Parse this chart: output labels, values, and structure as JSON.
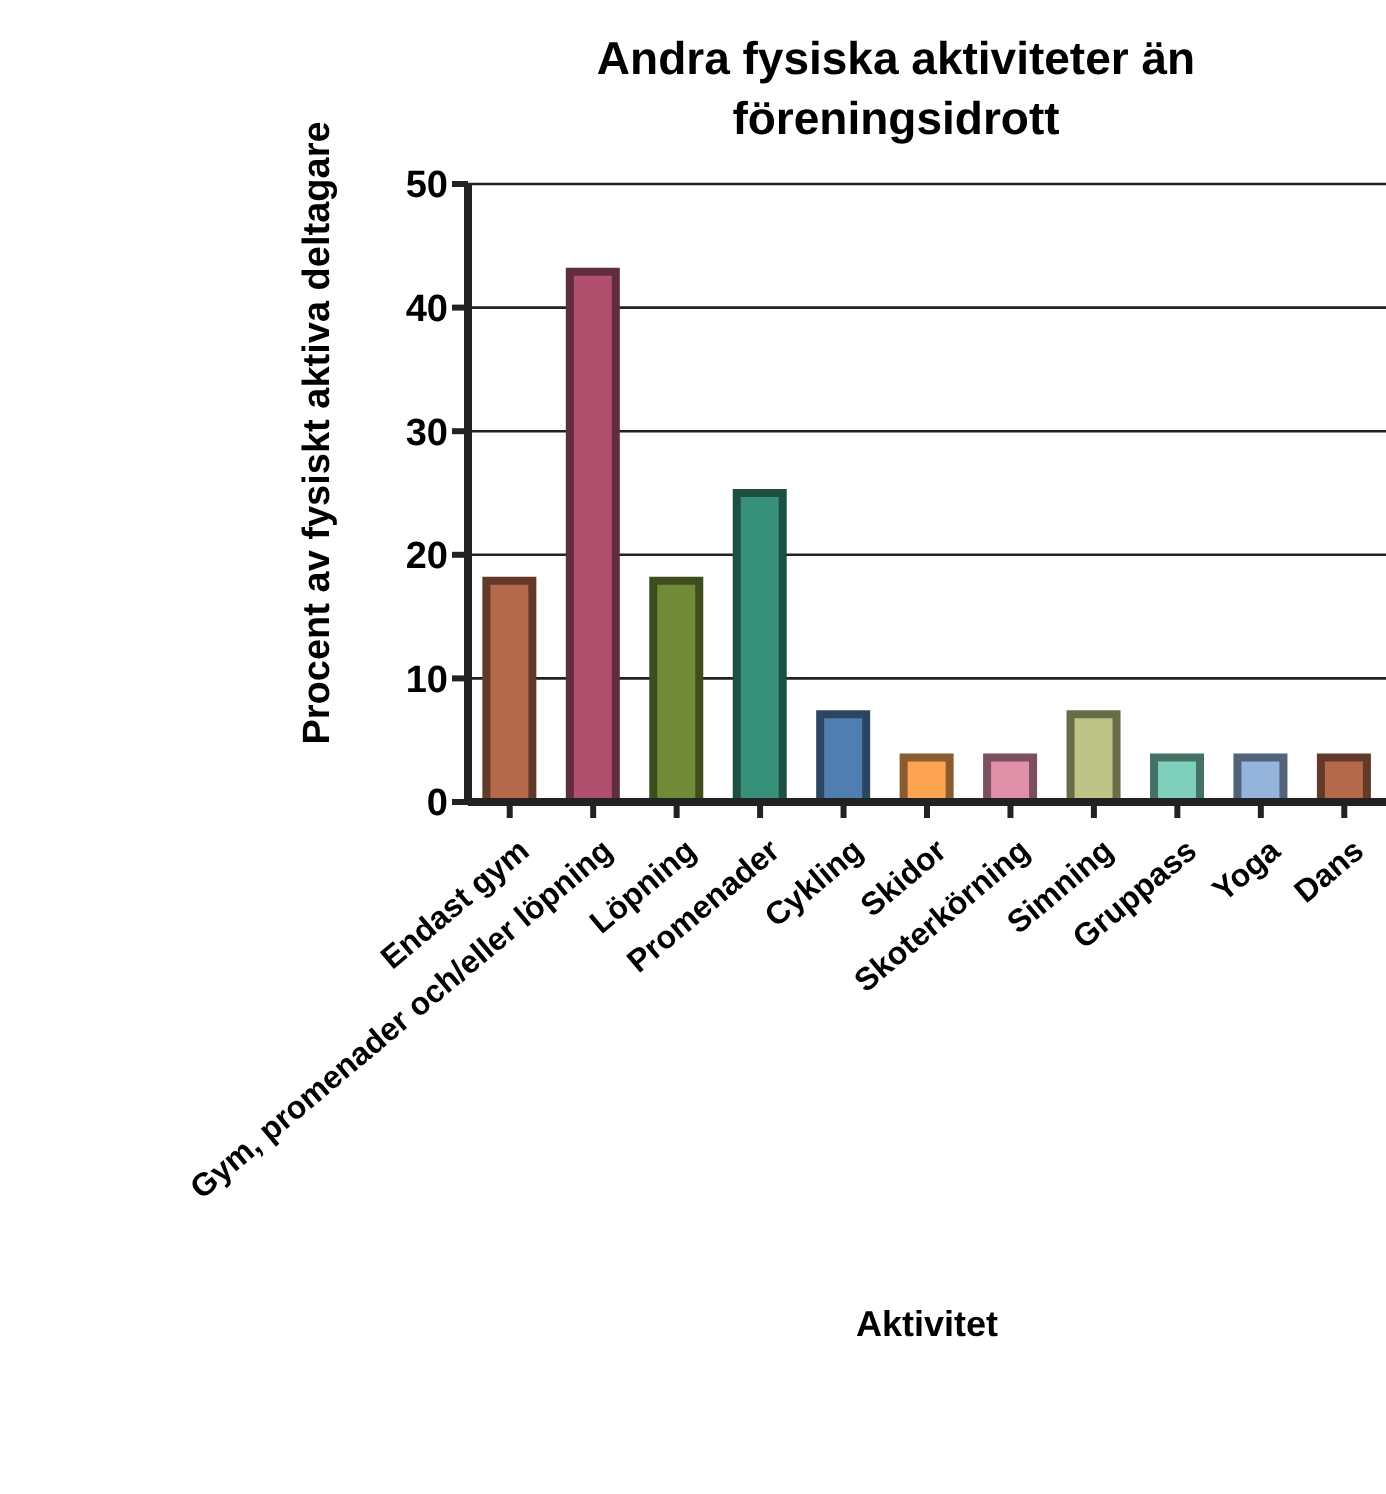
{
  "chart_data": {
    "type": "bar",
    "title": "Andra fysiska aktiviteter än föreningsidrott",
    "xlabel": "Aktivitet",
    "ylabel": "Procent av fysiskt aktiva deltagare",
    "categories": [
      "Endast gym",
      "Gym, promenader och/eller löpning",
      "Löpning",
      "Promenader",
      "Cykling",
      "Skidor",
      "Skoterkörning",
      "Simning",
      "Gruppass",
      "Yoga",
      "Dans"
    ],
    "values": [
      17.9,
      42.9,
      17.9,
      25,
      7.1,
      3.6,
      3.6,
      7.1,
      3.6,
      3.6,
      3.6
    ],
    "colors": [
      "#b46a4a",
      "#b0506e",
      "#718a37",
      "#36907a",
      "#507eb0",
      "#fda452",
      "#e090a8",
      "#bec485",
      "#7ed0bc",
      "#94b4dc",
      "#b46a4a"
    ],
    "ylim": [
      0,
      50
    ],
    "yticks": [
      0,
      10,
      20,
      30,
      40,
      50
    ],
    "grid": "y",
    "legend": false
  }
}
